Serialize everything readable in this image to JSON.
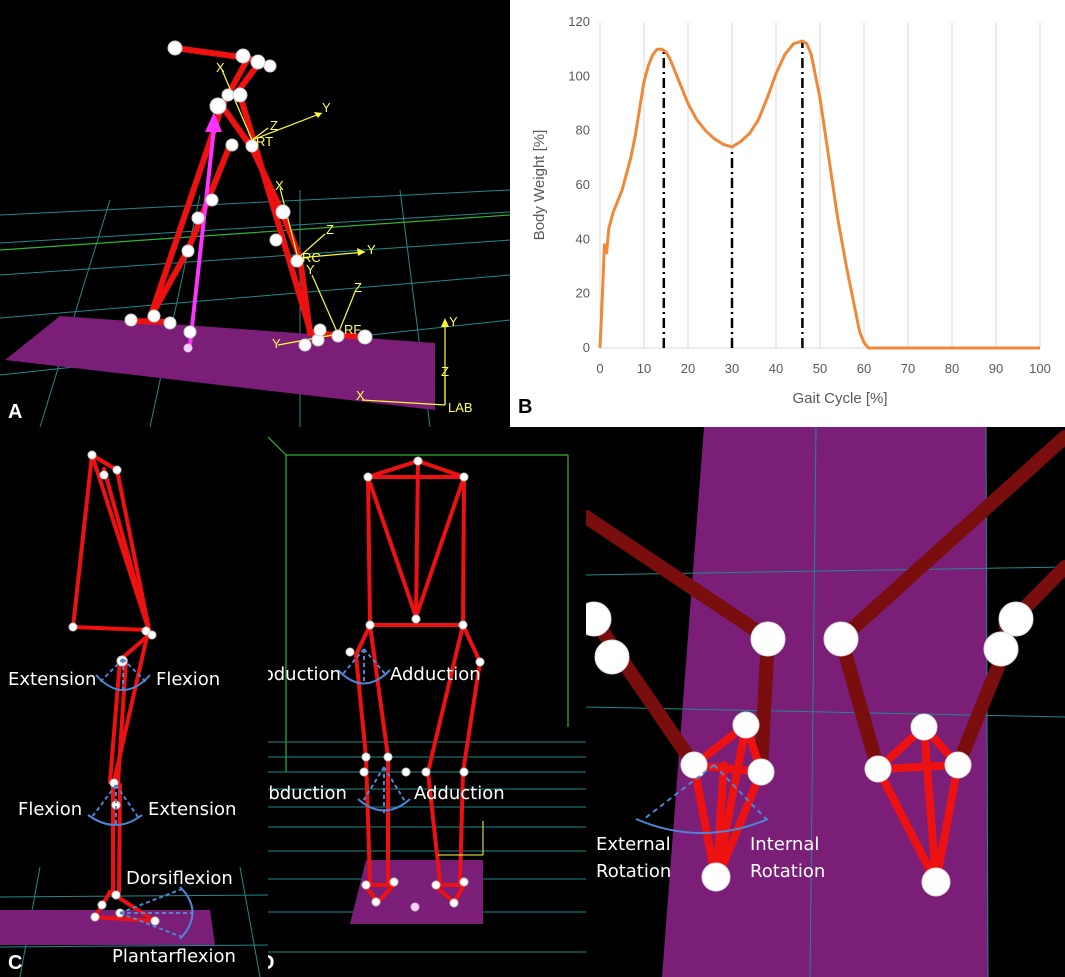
{
  "panels": {
    "a": {
      "label": "A",
      "axis_labels": {
        "x_top": "X",
        "rt": "RT",
        "z_rt": "Z",
        "y_rt": "Y",
        "x_rc": "X",
        "z_rc": "Z",
        "rc": "RC",
        "y_rc": "Y",
        "y_rc2": "Y",
        "z_rf": "Z",
        "rf": "RF",
        "y_rf": "Y",
        "lab_y": "Y",
        "lab_z": "Z",
        "lab_x": "X",
        "lab": "LAB"
      }
    },
    "b": {
      "label": "B"
    },
    "c": {
      "label": "C",
      "annotations": {
        "hip_left": "Extension",
        "hip_right": "Flexion",
        "knee_left": "Flexion",
        "knee_right": "Extension",
        "ankle_up": "Dorsiflexion",
        "ankle_down": "Plantarflexion"
      }
    },
    "d": {
      "label": "D",
      "annotations": {
        "hip_left": "Abduction",
        "hip_right": "Adduction",
        "knee_left": "Abduction",
        "knee_right": "Adduction"
      }
    },
    "e": {
      "annotations": {
        "left_line1": "External",
        "left_line2": "Rotation",
        "right_line1": "Internal",
        "right_line2": "Rotation"
      }
    }
  },
  "colors": {
    "skeleton": "#ee1111",
    "dark_skeleton": "#7a0d0d",
    "marker": "#ffffff",
    "floor": "#7a1e78",
    "grid": "#1f8a8a",
    "box": "#2fb52f",
    "axis_yellow": "#ffff33",
    "force_vector": "#ff33ff",
    "chart_line": "#f0883a",
    "annotation_arc": "#4d86d4"
  },
  "chart_data": {
    "type": "line",
    "title": "",
    "xlabel": "Gait Cycle [%]",
    "ylabel": "Body Weight [%]",
    "xlim": [
      0,
      100
    ],
    "ylim": [
      0,
      120
    ],
    "x_ticks": [
      0,
      10,
      20,
      30,
      40,
      50,
      60,
      70,
      80,
      90,
      100
    ],
    "y_ticks": [
      0,
      20,
      40,
      60,
      80,
      100,
      120
    ],
    "grid": "vertical",
    "x": [
      0,
      0.5,
      1,
      1.5,
      2,
      3,
      4,
      5,
      6,
      7,
      8,
      9,
      10,
      11,
      12,
      13,
      14,
      15,
      16,
      18,
      20,
      22,
      24,
      26,
      28,
      30,
      32,
      34,
      36,
      38,
      40,
      42,
      44,
      46,
      47,
      48,
      50,
      52,
      54,
      56,
      58,
      59,
      60,
      61,
      62,
      70,
      80,
      90,
      100
    ],
    "y": [
      0,
      18,
      38,
      35,
      44,
      50,
      54,
      58,
      64,
      70,
      78,
      88,
      98,
      104,
      108,
      110,
      110,
      109,
      106,
      98,
      90,
      84,
      80,
      77,
      75,
      74,
      76,
      79,
      84,
      92,
      101,
      108,
      112,
      113,
      112,
      108,
      92,
      70,
      48,
      30,
      14,
      6,
      2,
      0,
      0,
      0,
      0,
      0,
      0
    ],
    "vertical_markers": [
      14.5,
      30,
      46
    ]
  }
}
